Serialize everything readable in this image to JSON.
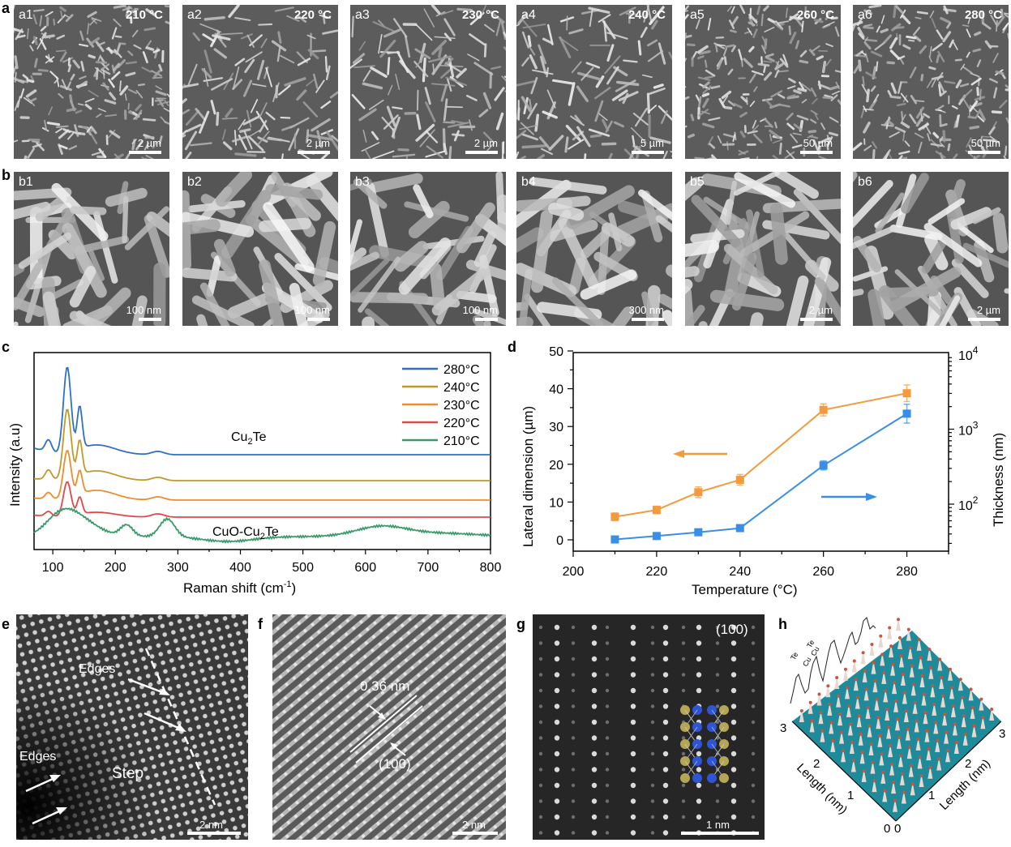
{
  "figure": {
    "panel_letters": {
      "a": "a",
      "b": "b",
      "c": "c",
      "d": "d",
      "e": "e",
      "f": "f",
      "g": "g",
      "h": "h"
    }
  },
  "row_a": [
    {
      "tag": "a1",
      "temperature": "210 °C",
      "scale": "2 µm"
    },
    {
      "tag": "a2",
      "temperature": "220 °C",
      "scale": "2 µm"
    },
    {
      "tag": "a3",
      "temperature": "230 °C",
      "scale": "2 µm"
    },
    {
      "tag": "a4",
      "temperature": "240 °C",
      "scale": "5 µm"
    },
    {
      "tag": "a5",
      "temperature": "260 °C",
      "scale": "50 µm"
    },
    {
      "tag": "a6",
      "temperature": "280 °C",
      "scale": "50 µm"
    }
  ],
  "row_b": [
    {
      "tag": "b1",
      "scale": "100 nm"
    },
    {
      "tag": "b2",
      "scale": "100 nm"
    },
    {
      "tag": "b3",
      "scale": "100 nm"
    },
    {
      "tag": "b4",
      "scale": "300 nm"
    },
    {
      "tag": "b5",
      "scale": "2 µm"
    },
    {
      "tag": "b6",
      "scale": "2 µm"
    }
  ],
  "panel_e": {
    "label_edges_top": "Edges",
    "label_edges_left": "Edges",
    "label_step": "Step",
    "scale": "2 nm"
  },
  "panel_f": {
    "spacing": "0.36 nm",
    "plane": "(100)",
    "scale": "2 nm"
  },
  "panel_g": {
    "plane": "(100)",
    "scale": "1 nm"
  },
  "panel_h": {
    "axis_left_label": "Length (nm)",
    "axis_right_label": "Length (nm)",
    "left_ticks": [
      "0",
      "1",
      "2",
      "3"
    ],
    "right_ticks": [
      "0",
      "1",
      "2",
      "3"
    ],
    "profile_labels": [
      "Te",
      "Cu",
      "Cu",
      "Te"
    ]
  },
  "chart_data": [
    {
      "id": "c",
      "type": "line",
      "title": "",
      "xlabel": "Raman shift (cm-1)",
      "ylabel": "Intensity (a.u)",
      "xlim": [
        70,
        800
      ],
      "xticks": [
        "100",
        "200",
        "300",
        "400",
        "500",
        "600",
        "700",
        "800"
      ],
      "grid": false,
      "legend_position": "upper right",
      "annotations": [
        "Cu2Te",
        "CuO-Cu2Te"
      ],
      "series": [
        {
          "name": "280°C",
          "color": "#2e6fcb",
          "offset": 4,
          "peaks_cm1": [
            93,
            123,
            142,
            268
          ]
        },
        {
          "name": "240°C",
          "color": "#bf9a2a",
          "offset": 3,
          "peaks_cm1": [
            93,
            122,
            142,
            268
          ]
        },
        {
          "name": "230°C",
          "color": "#f08c2c",
          "offset": 2,
          "peaks_cm1": [
            93,
            123,
            143,
            268
          ]
        },
        {
          "name": "220°C",
          "color": "#e04848",
          "offset": 1,
          "peaks_cm1": [
            125,
            144
          ]
        },
        {
          "name": "210°C",
          "color": "#3a9a6a",
          "offset": 0,
          "peaks_cm1": [
            120,
            218,
            283,
            625
          ]
        }
      ]
    },
    {
      "id": "d",
      "type": "line",
      "title": "",
      "xlabel": "Temperature (°C)",
      "ylabel": "Lateral dimension (µm)",
      "ylabel_right": "Thickness (nm)",
      "x": [
        210,
        220,
        230,
        240,
        260,
        280
      ],
      "xlim": [
        200,
        290
      ],
      "xticks": [
        "200",
        "220",
        "240",
        "260",
        "280"
      ],
      "ylim": [
        -3,
        50
      ],
      "yticks": [
        "0",
        "10",
        "20",
        "30",
        "40",
        "50"
      ],
      "ylim_right": [
        30,
        10000
      ],
      "yticks_right": [
        "10^2",
        "10^3",
        "10^4"
      ],
      "grid": false,
      "series": [
        {
          "name": "Lateral dimension",
          "axis": "left",
          "color": "#f39a3c",
          "values": [
            6.1,
            7.9,
            12.6,
            15.9,
            34.4,
            38.8
          ],
          "errors": [
            1.0,
            1.0,
            1.4,
            1.4,
            1.6,
            2.2
          ]
        },
        {
          "name": "Thickness",
          "axis": "right",
          "color": "#3a8ee6",
          "values": [
            0.1,
            1.0,
            2.0,
            3.1,
            19.7,
            33.4
          ],
          "values_nm": [
            35,
            40,
            45,
            50,
            320,
            1550
          ],
          "errors": [
            0.5,
            0.6,
            0.6,
            0.6,
            1.2,
            2.5
          ]
        }
      ]
    }
  ]
}
